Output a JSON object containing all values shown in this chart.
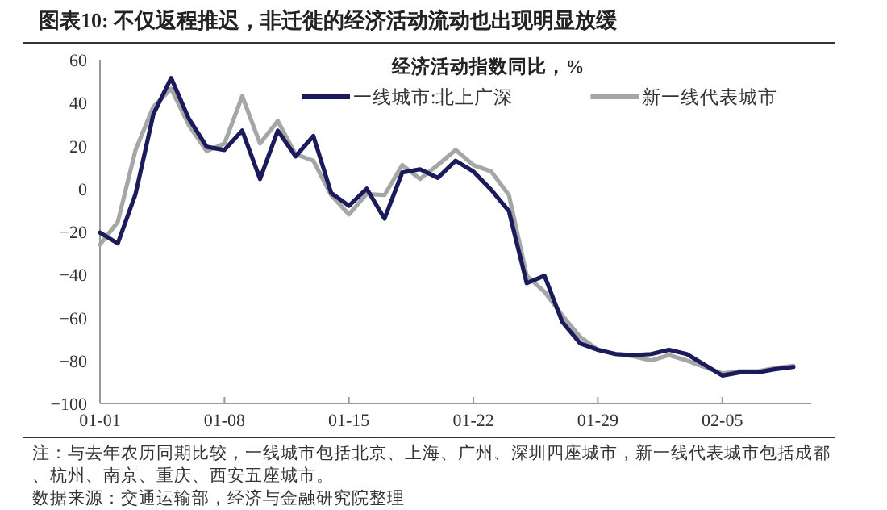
{
  "chart_data": {
    "type": "line",
    "title": "图表10:   不仅返程推迟，非迁徙的经济活动流动也出现明显放缓",
    "legend_title": "经济活动指数同比，%",
    "x": [
      "--01-01",
      "--01-02",
      "--01-03",
      "--01-04",
      "--01-05",
      "--01-06",
      "--01-07",
      "--01-08",
      "--01-09",
      "--01-10",
      "--01-11",
      "--01-12",
      "--01-13",
      "--01-14",
      "--01-15",
      "--01-16",
      "--01-17",
      "--01-18",
      "--01-19",
      "--01-20",
      "--01-21",
      "--01-22",
      "--01-23",
      "--01-24",
      "--01-25",
      "--01-26",
      "--01-27",
      "--01-28",
      "--01-29",
      "--01-30",
      "--01-31",
      "--02-01",
      "--02-02",
      "--02-03",
      "--02-04",
      "--02-05",
      "--02-06",
      "--02-07",
      "--02-08",
      "--02-09"
    ],
    "series": [
      {
        "name": "一线城市:北上广深",
        "color": "#1b1b5c",
        "values": [
          -20.5,
          -25.5,
          -2.5,
          34.5,
          51.5,
          32.5,
          19.5,
          18,
          27,
          4.5,
          27,
          15,
          24.5,
          -2,
          -8,
          0,
          -14,
          7.5,
          9,
          5,
          13,
          8,
          -0.5,
          -10.5,
          -44,
          -40.5,
          -62,
          -72,
          -75,
          -77,
          -77.5,
          -77,
          -75,
          -77,
          -82,
          -87,
          -85.5,
          -85.5,
          -84,
          -83
        ]
      },
      {
        "name": "新一线代表城市",
        "color": "#a6a6a6",
        "values": [
          -26,
          -15.5,
          18,
          38,
          46.5,
          29.5,
          17.5,
          21,
          43,
          21,
          31.5,
          16,
          13,
          -3,
          -12,
          -2.5,
          -3,
          11,
          4.5,
          11,
          18,
          11,
          8,
          -3,
          -40.5,
          -48,
          -59,
          -69,
          -75,
          -77,
          -78,
          -80,
          -77.5,
          -80,
          -83,
          -86,
          -85,
          -85,
          -83.5,
          -82.5
        ]
      }
    ],
    "xlim": [
      "--01-01",
      "--02-10"
    ],
    "xticks": [
      {
        "value": "--01-01",
        "label": "01-01"
      },
      {
        "value": "--01-08",
        "label": "01-08"
      },
      {
        "value": "--01-15",
        "label": "01-15"
      },
      {
        "value": "--01-22",
        "label": "01-22"
      },
      {
        "value": "--01-29",
        "label": "01-29"
      },
      {
        "value": "--02-05",
        "label": "02-05"
      }
    ],
    "ylim": [
      -100,
      60
    ],
    "yticks": [
      -100,
      -80,
      -60,
      -40,
      -20,
      0,
      20,
      40,
      60
    ],
    "grid": false,
    "legend": "top",
    "marker": "none",
    "line_style": "solid",
    "annotations": [
      "注：与去年农历同期比较，一线城市包括北京、上海、广州、深圳四座城市，新一线代表城市包括成都、杭州、南京、重庆、西安五座城市。",
      "数据来源：交通运输部，经济与金融研究院整理"
    ]
  }
}
